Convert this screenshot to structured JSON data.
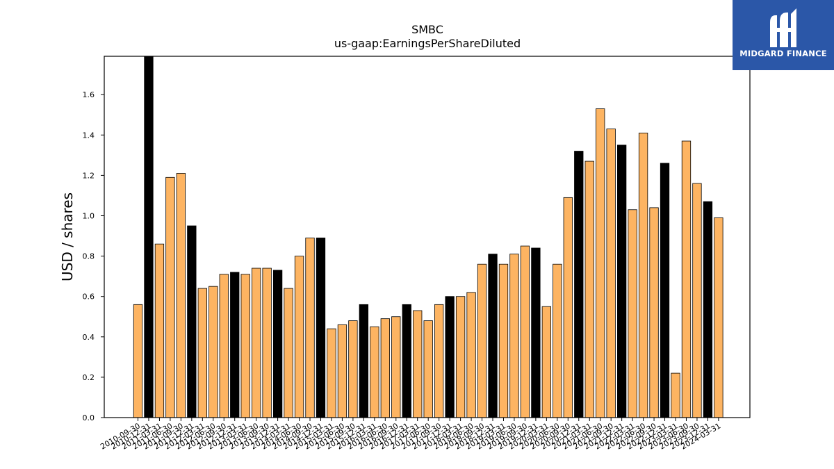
{
  "logo": {
    "text": "MIDGARD FINANCE",
    "icon": "midgard-logo-icon"
  },
  "chart_data": {
    "type": "bar",
    "title": "SMBC",
    "subtitle": "us-gaap:EarningsPerShareDiluted",
    "xlabel": "",
    "ylabel": "USD / shares",
    "ylim": [
      0,
      1.79
    ],
    "yticks": [
      "0.0",
      "0.2",
      "0.4",
      "0.6",
      "0.8",
      "1.0",
      "1.2",
      "1.4",
      "1.6"
    ],
    "grid": false,
    "colors": {
      "regular": "#fdb462",
      "highlight": "#000000"
    },
    "categories": [
      "2010-09-30",
      "2010-12-31",
      "2011-03-31",
      "2011-06-30",
      "2011-09-30",
      "2011-12-31",
      "2012-03-31",
      "2012-06-30",
      "2012-09-30",
      "2012-12-31",
      "2013-03-31",
      "2013-06-30",
      "2013-09-30",
      "2013-12-31",
      "2014-03-31",
      "2014-06-30",
      "2014-09-30",
      "2014-12-31",
      "2015-03-31",
      "2015-06-30",
      "2015-09-30",
      "2015-12-31",
      "2016-03-31",
      "2016-06-30",
      "2016-09-30",
      "2016-12-31",
      "2017-03-31",
      "2017-06-30",
      "2017-09-30",
      "2017-12-31",
      "2018-03-31",
      "2018-06-30",
      "2018-09-30",
      "2018-12-31",
      "2019-03-31",
      "2019-06-30",
      "2019-09-30",
      "2019-12-31",
      "2020-03-31",
      "2020-06-30",
      "2020-09-30",
      "2020-12-31",
      "2021-03-31",
      "2021-06-30",
      "2021-09-30",
      "2021-12-31",
      "2022-03-31",
      "2022-06-30",
      "2022-09-30",
      "2022-12-31",
      "2023-03-31",
      "2023-06-30",
      "2023-09-30",
      "2023-12-31",
      "2024-03-31"
    ],
    "values": [
      0.56,
      1.79,
      0.86,
      1.19,
      1.21,
      0.95,
      0.64,
      0.65,
      0.71,
      0.72,
      0.71,
      0.74,
      0.74,
      0.73,
      0.64,
      0.8,
      0.89,
      0.89,
      0.44,
      0.46,
      0.48,
      0.56,
      0.45,
      0.49,
      0.5,
      0.56,
      0.53,
      0.48,
      0.56,
      0.6,
      0.6,
      0.62,
      0.76,
      0.81,
      0.76,
      0.81,
      0.85,
      0.84,
      0.55,
      0.76,
      1.09,
      1.32,
      1.27,
      1.53,
      1.43,
      1.35,
      1.03,
      1.41,
      1.04,
      1.26,
      0.22,
      1.37,
      1.16,
      1.07,
      0.99
    ],
    "highlight": [
      false,
      true,
      false,
      false,
      false,
      true,
      false,
      false,
      false,
      true,
      false,
      false,
      false,
      true,
      false,
      false,
      false,
      true,
      false,
      false,
      false,
      true,
      false,
      false,
      false,
      true,
      false,
      false,
      false,
      true,
      false,
      false,
      false,
      true,
      false,
      false,
      false,
      true,
      false,
      false,
      false,
      true,
      false,
      false,
      false,
      true,
      false,
      false,
      false,
      true,
      false,
      false,
      false,
      true,
      false
    ]
  }
}
